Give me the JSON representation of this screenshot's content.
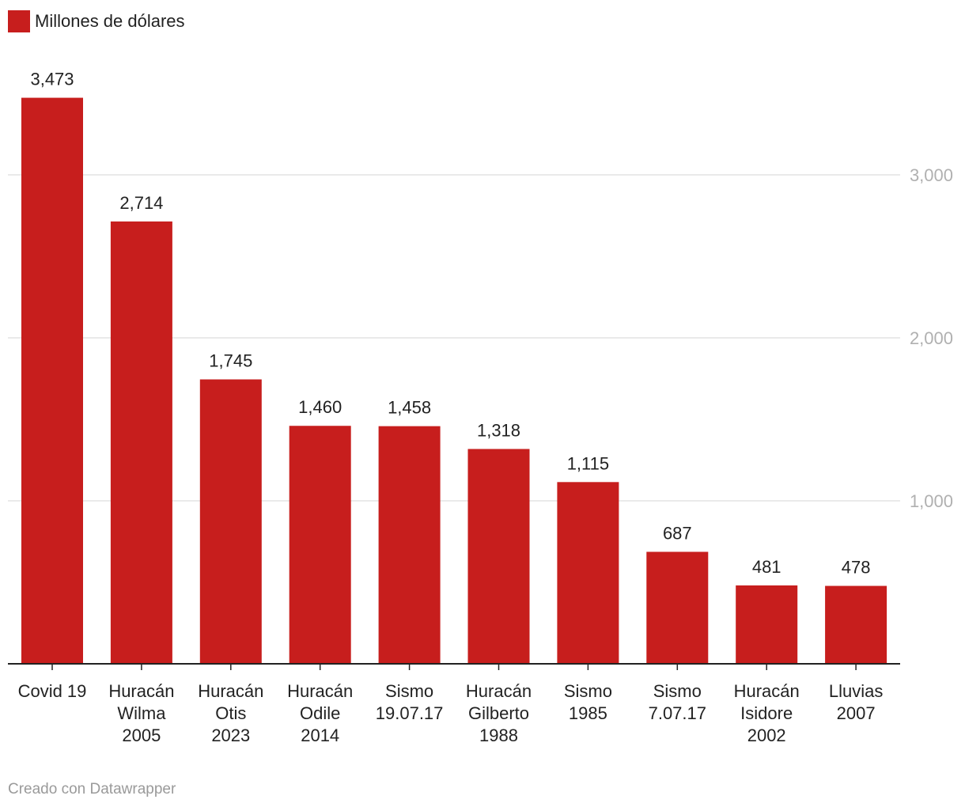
{
  "chart_data": {
    "type": "bar",
    "legend": {
      "label": "Millones de dólares",
      "color": "#c71e1d"
    },
    "categories": [
      [
        "Covid 19"
      ],
      [
        "Huracán",
        "Wilma",
        "2005"
      ],
      [
        "Huracán",
        "Otis",
        "2023"
      ],
      [
        "Huracán",
        "Odile",
        "2014"
      ],
      [
        "Sismo",
        "19.07.17"
      ],
      [
        "Huracán",
        "Gilberto",
        "1988"
      ],
      [
        "Sismo",
        "1985"
      ],
      [
        "Sismo",
        "7.07.17"
      ],
      [
        "Huracán",
        "Isidore",
        "2002"
      ],
      [
        "Lluvias",
        "2007"
      ]
    ],
    "values": [
      3473,
      2714,
      1745,
      1460,
      1458,
      1318,
      1115,
      687,
      481,
      478
    ],
    "value_labels": [
      "3,473",
      "2,714",
      "1,745",
      "1,460",
      "1,458",
      "1,318",
      "1,115",
      "687",
      "481",
      "478"
    ],
    "yticks": [
      1000,
      2000,
      3000
    ],
    "ytick_labels": [
      "1,000",
      "2,000",
      "3,000"
    ],
    "ylim": [
      0,
      3473
    ],
    "grid": true,
    "y_axis_position": "right",
    "legend_position": "top-left"
  },
  "footer": {
    "credit": "Creado con Datawrapper"
  }
}
